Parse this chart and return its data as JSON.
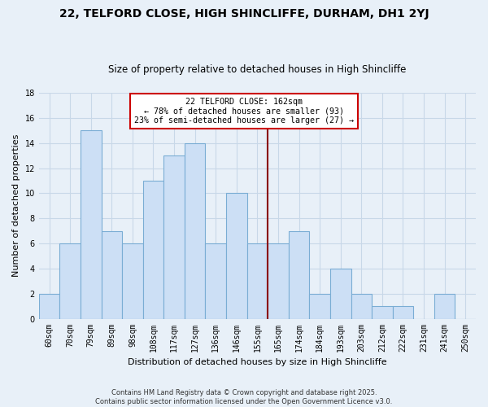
{
  "title": "22, TELFORD CLOSE, HIGH SHINCLIFFE, DURHAM, DH1 2YJ",
  "subtitle": "Size of property relative to detached houses in High Shincliffe",
  "xlabel": "Distribution of detached houses by size in High Shincliffe",
  "ylabel": "Number of detached properties",
  "bar_labels": [
    "60sqm",
    "70sqm",
    "79sqm",
    "89sqm",
    "98sqm",
    "108sqm",
    "117sqm",
    "127sqm",
    "136sqm",
    "146sqm",
    "155sqm",
    "165sqm",
    "174sqm",
    "184sqm",
    "193sqm",
    "203sqm",
    "212sqm",
    "222sqm",
    "231sqm",
    "241sqm",
    "250sqm"
  ],
  "bar_values": [
    2,
    6,
    15,
    7,
    6,
    11,
    13,
    14,
    6,
    10,
    6,
    6,
    7,
    2,
    4,
    2,
    1,
    1,
    0,
    2,
    0
  ],
  "bar_color": "#ccdff5",
  "bar_edge_color": "#7aadd4",
  "vline_x": 11,
  "vline_color": "#8b0000",
  "annotation_text": "22 TELFORD CLOSE: 162sqm\n← 78% of detached houses are smaller (93)\n23% of semi-detached houses are larger (27) →",
  "annotation_box_color": "#ffffff",
  "annotation_box_edge_color": "#cc0000",
  "ylim": [
    0,
    18
  ],
  "yticks": [
    0,
    2,
    4,
    6,
    8,
    10,
    12,
    14,
    16,
    18
  ],
  "grid_color": "#c8d8e8",
  "background_color": "#e8f0f8",
  "footer_line1": "Contains HM Land Registry data © Crown copyright and database right 2025.",
  "footer_line2": "Contains public sector information licensed under the Open Government Licence v3.0.",
  "title_fontsize": 10,
  "subtitle_fontsize": 8.5,
  "xlabel_fontsize": 8,
  "ylabel_fontsize": 8,
  "tick_fontsize": 7,
  "footer_fontsize": 6
}
